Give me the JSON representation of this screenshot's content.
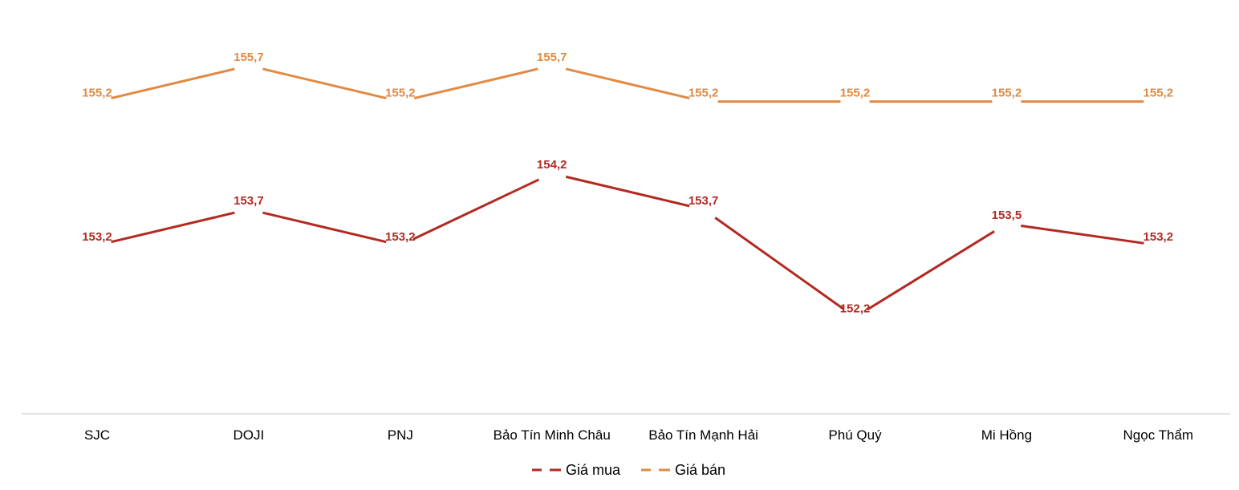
{
  "chart_data": {
    "type": "line",
    "title": "",
    "xlabel": "",
    "ylabel": "",
    "categories": [
      "SJC",
      "DOJI",
      "PNJ",
      "Bảo Tín Minh Châu",
      "Bảo Tín Mạnh Hải",
      "Phú Quý",
      "Mi Hồng",
      "Ngọc Thẩm"
    ],
    "series": [
      {
        "name": "Giá mua",
        "color": "#B22A22",
        "values": [
          153.2,
          153.7,
          153.2,
          154.2,
          153.7,
          152.2,
          153.5,
          153.2
        ],
        "labels": [
          "153,2",
          "153,7",
          "153,2",
          "154,2",
          "153,7",
          "152,2",
          "153,5",
          "153,2"
        ]
      },
      {
        "name": "Giá bán",
        "color": "#E08A43",
        "values": [
          155.2,
          155.7,
          155.2,
          155.7,
          155.2,
          155.2,
          155.2,
          155.2
        ],
        "labels": [
          "155,2",
          "155,7",
          "155,2",
          "155,7",
          "155,2",
          "155,2",
          "155,2",
          "155,2"
        ]
      }
    ],
    "ylim": [
      150.9,
      156.3
    ],
    "grid": false,
    "legend_position": "bottom",
    "x_axis_line_color": "#D9D9D9"
  }
}
